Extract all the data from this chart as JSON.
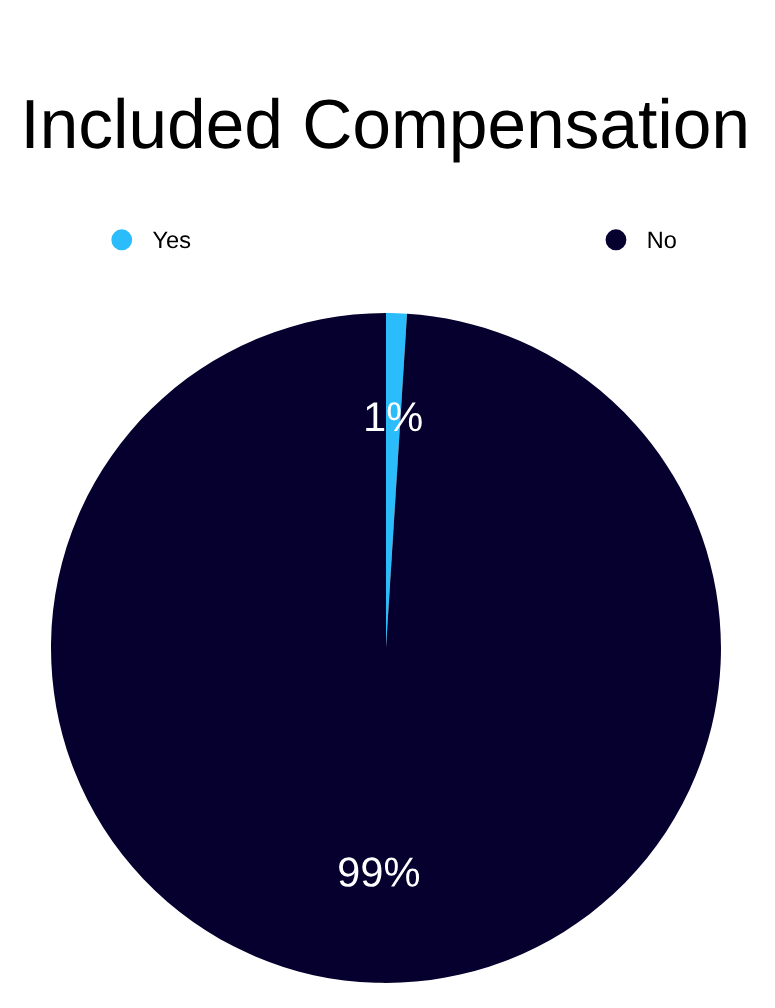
{
  "chart_data": {
    "type": "pie",
    "title": "Included Compensation",
    "categories": [
      "Yes",
      "No"
    ],
    "values": [
      1,
      99
    ],
    "colors": [
      "#2bbcfc",
      "#06002e"
    ],
    "value_labels": [
      "1%",
      "99%"
    ],
    "legend": "top"
  }
}
